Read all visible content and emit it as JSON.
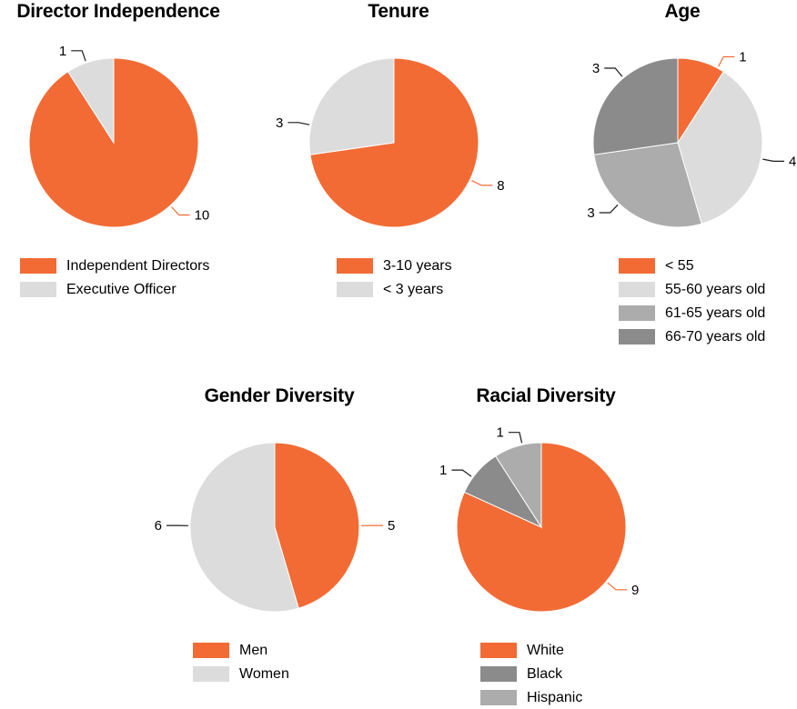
{
  "colors": {
    "orange": "#F26B35",
    "light_gray": "#DCDCDC",
    "mid_gray": "#ACACAC",
    "dark_gray": "#8B8B8B",
    "dark": "#1A1A1A",
    "text": "#000000",
    "background": "#FFFFFF"
  },
  "chart_data": [
    {
      "type": "pie",
      "title": "Director Independence",
      "total": 11,
      "direction": "clockwise",
      "start_angle_deg": 0,
      "legend_position": "bottom-left",
      "slices": [
        {
          "label": "Independent Directors",
          "value": 10,
          "color": "orange",
          "callout_angle_deg": 138,
          "leader_color": "orange"
        },
        {
          "label": "Executive Officer",
          "value": 1,
          "color": "light_gray",
          "callout_angle_deg": 341,
          "leader_color": "dark"
        }
      ]
    },
    {
      "type": "pie",
      "title": "Tenure",
      "total": 11,
      "direction": "clockwise",
      "start_angle_deg": 0,
      "legend_position": "bottom-left",
      "slices": [
        {
          "label": "3-10 years",
          "value": 8,
          "color": "orange",
          "callout_angle_deg": 116,
          "leader_color": "orange"
        },
        {
          "label": "< 3 years",
          "value": 3,
          "color": "light_gray",
          "callout_angle_deg": 282,
          "leader_color": "dark"
        }
      ]
    },
    {
      "type": "pie",
      "title": "Age",
      "total": 11,
      "direction": "clockwise",
      "start_angle_deg": 0,
      "legend_position": "bottom-left",
      "slices": [
        {
          "label": "< 55",
          "value": 1,
          "color": "orange",
          "callout_angle_deg": 28,
          "leader_color": "orange"
        },
        {
          "label": "55-60 years old",
          "value": 4,
          "color": "light_gray",
          "callout_angle_deg": 101,
          "leader_color": "dark"
        },
        {
          "label": "61-65 years old",
          "value": 3,
          "color": "mid_gray",
          "callout_angle_deg": 224,
          "leader_color": "dark"
        },
        {
          "label": "66-70 years old",
          "value": 3,
          "color": "dark_gray",
          "callout_angle_deg": 320,
          "leader_color": "dark"
        }
      ]
    },
    {
      "type": "pie",
      "title": "Gender Diversity",
      "total": 11,
      "direction": "clockwise",
      "start_angle_deg": 0,
      "legend_position": "bottom-left",
      "slices": [
        {
          "label": "Men",
          "value": 5,
          "color": "orange",
          "callout_angle_deg": 89,
          "leader_color": "orange"
        },
        {
          "label": "Women",
          "value": 6,
          "color": "light_gray",
          "callout_angle_deg": 271,
          "leader_color": "dark"
        }
      ]
    },
    {
      "type": "pie",
      "title": "Racial Diversity",
      "total": 11,
      "direction": "clockwise",
      "start_angle_deg": 0,
      "legend_position": "bottom-left",
      "slices": [
        {
          "label": "White",
          "value": 9,
          "color": "orange",
          "callout_angle_deg": 130,
          "leader_color": "orange"
        },
        {
          "label": "Black",
          "value": 1,
          "color": "dark_gray",
          "callout_angle_deg": 306,
          "leader_color": "dark"
        },
        {
          "label": "Hispanic",
          "value": 1,
          "color": "mid_gray",
          "callout_angle_deg": 347,
          "leader_color": "dark"
        }
      ]
    }
  ]
}
